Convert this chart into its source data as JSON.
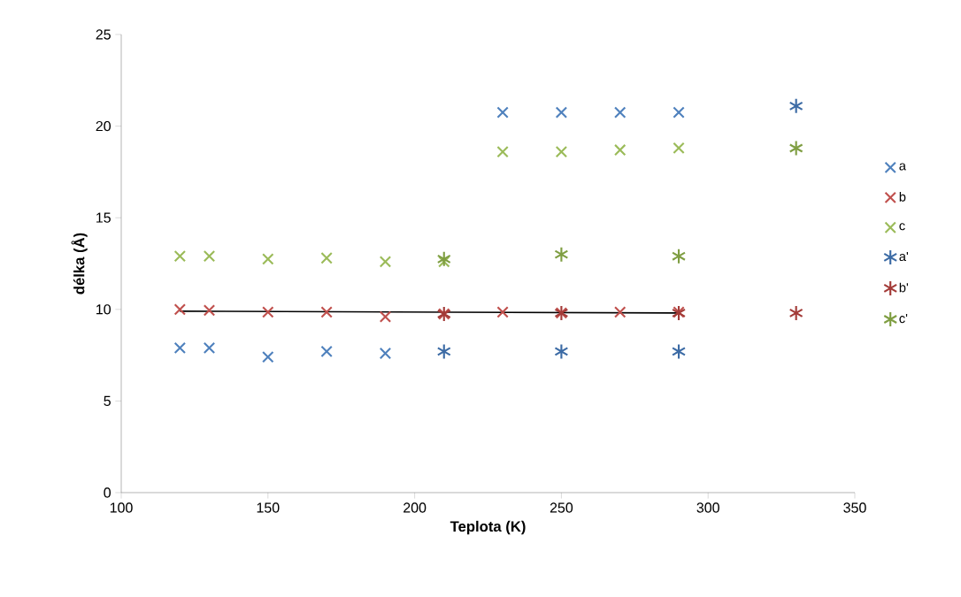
{
  "chart_data": {
    "type": "scatter",
    "xlabel": "Teplota (K)",
    "ylabel": "délka (Å)",
    "xlim": [
      100,
      350
    ],
    "xticks": [
      100,
      150,
      200,
      250,
      300,
      350
    ],
    "ylim": [
      0,
      25
    ],
    "yticks": [
      0,
      5,
      10,
      15,
      20,
      25
    ],
    "grid": false,
    "legend": "right",
    "series": [
      {
        "name": "a",
        "color": "#4f81bd",
        "marker": "cross",
        "x": [
          120,
          130,
          150,
          170,
          190,
          230,
          250,
          270,
          290
        ],
        "values": [
          7.9,
          7.9,
          7.4,
          7.7,
          7.6,
          20.75,
          20.75,
          20.75,
          20.75
        ]
      },
      {
        "name": "b",
        "color": "#c0504d",
        "marker": "cross",
        "x": [
          120,
          130,
          150,
          170,
          190,
          210,
          230,
          250,
          270,
          290
        ],
        "values": [
          10.0,
          9.95,
          9.85,
          9.85,
          9.6,
          9.75,
          9.85,
          9.8,
          9.85,
          9.85
        ]
      },
      {
        "name": "c",
        "color": "#9bbb59",
        "marker": "cross",
        "x": [
          120,
          130,
          150,
          170,
          190,
          210,
          230,
          250,
          270,
          290
        ],
        "values": [
          12.9,
          12.9,
          12.75,
          12.8,
          12.6,
          12.6,
          18.6,
          18.6,
          18.7,
          18.8
        ]
      },
      {
        "name": "a'",
        "color": "#3c6ba5",
        "x": [
          210,
          250,
          290,
          330
        ],
        "values": [
          7.7,
          7.7,
          7.7,
          21.1
        ]
      },
      {
        "name": "b'",
        "color": "#a33b38",
        "x": [
          210,
          250,
          290,
          330
        ],
        "values": [
          9.75,
          9.8,
          9.8,
          9.8
        ]
      },
      {
        "name": "c'",
        "color": "#7f9e42",
        "x": [
          210,
          250,
          290,
          330
        ],
        "values": [
          12.75,
          13.0,
          12.9,
          18.8
        ]
      },
      {
        "type": "line",
        "color": "#000000",
        "marker": "none",
        "x": [
          120,
          290
        ],
        "values": [
          9.9,
          9.8
        ]
      }
    ]
  }
}
